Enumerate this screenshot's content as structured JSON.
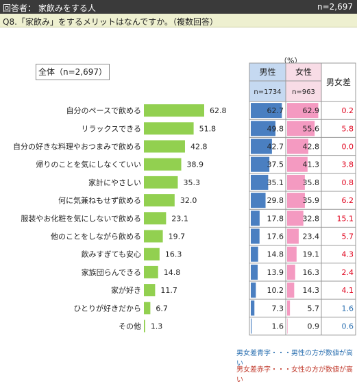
{
  "header": {
    "respondent_label": "回答者：  家飲みをする人",
    "n_label": "n=2,697"
  },
  "question": {
    "text": "Q8.「家飲み」をするメリットはなんですか。（複数回答）"
  },
  "total_label": "全体（n=2,697）",
  "unit_label": "（%）",
  "table": {
    "male_header": "男性",
    "male_n": "n=1734",
    "female_header": "女性",
    "female_n": "n=963",
    "diff_header": "男女差"
  },
  "legend": {
    "blue_text": "男女差青字・・・男性の方が数値が高い",
    "red_text": "男女差赤字・・・女性の方が数値が高い"
  },
  "colors": {
    "total_bar": "#92d050",
    "male_bar": "#4a7fc1",
    "female_bar": "#f49ac1",
    "blue_text": "#2a6fb0",
    "red_text": "#e0001b",
    "male_header_bg": "#c5d9f1",
    "female_header_bg": "#f8dce6"
  },
  "chart_data": {
    "type": "bar",
    "categories": [
      "自分のペースで飲める",
      "リラックスできる",
      "自分の好きな料理やおつまみで飲める",
      "帰りのことを気にしなくていい",
      "家計にやさしい",
      "何に気兼ねもせず飲める",
      "服装やお化粧を気にしないで飲める",
      "他のことをしながら飲める",
      "飲みすぎても安心",
      "家族団らんできる",
      "家が好き",
      "ひとりが好きだから",
      "その他"
    ],
    "series": [
      {
        "name": "全体",
        "values": [
          62.8,
          51.8,
          42.8,
          38.9,
          35.3,
          32.0,
          23.1,
          19.7,
          16.3,
          14.8,
          11.7,
          6.7,
          1.3
        ]
      },
      {
        "name": "男性",
        "values": [
          62.7,
          49.8,
          42.7,
          37.5,
          35.1,
          29.8,
          17.8,
          17.6,
          14.8,
          13.9,
          10.2,
          7.3,
          1.6
        ]
      },
      {
        "name": "女性",
        "values": [
          62.9,
          55.6,
          42.8,
          41.3,
          35.8,
          35.9,
          32.8,
          23.4,
          19.1,
          16.3,
          14.3,
          5.7,
          0.9
        ]
      },
      {
        "name": "男女差",
        "values": [
          0.2,
          5.8,
          0.0,
          3.8,
          0.8,
          6.2,
          15.1,
          5.7,
          4.3,
          2.4,
          4.1,
          1.6,
          0.6
        ]
      }
    ],
    "diff_color": [
      "red",
      "red",
      "red",
      "red",
      "red",
      "red",
      "red",
      "red",
      "red",
      "red",
      "red",
      "blue",
      "blue"
    ],
    "ylim": [
      0,
      100
    ]
  }
}
